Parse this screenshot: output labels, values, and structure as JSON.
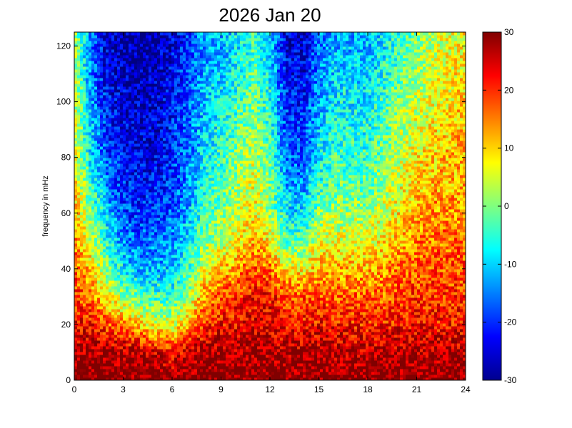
{
  "chart_data": {
    "type": "heatmap",
    "title": "2026 Jan 20",
    "xlabel": "",
    "ylabel": "frequency in mHz",
    "xlim": [
      0,
      24
    ],
    "ylim": [
      0,
      125
    ],
    "x_ticks": [
      0,
      3,
      6,
      9,
      12,
      15,
      18,
      21,
      24
    ],
    "y_ticks": [
      0,
      20,
      40,
      60,
      80,
      100,
      120
    ],
    "colorbar": {
      "colormap": "jet",
      "min": -30,
      "max": 30,
      "ticks": [
        30,
        20,
        10,
        0,
        -10,
        -20,
        -30
      ]
    },
    "times": [
      0,
      1,
      2,
      3,
      4,
      5,
      6,
      7,
      8,
      9,
      10,
      11,
      12,
      13,
      14,
      15,
      16,
      17,
      18,
      19,
      20,
      21,
      22,
      23,
      24
    ],
    "frequencies": [
      0,
      10,
      20,
      30,
      40,
      50,
      60,
      70,
      80,
      90,
      100,
      110,
      120
    ],
    "values": [
      [
        30,
        30,
        30,
        30,
        30,
        30,
        30,
        30,
        30,
        30,
        30,
        30,
        30,
        30,
        30,
        30,
        30,
        30,
        30,
        30,
        30,
        30,
        30,
        30,
        30
      ],
      [
        28,
        28,
        28,
        28,
        27,
        25,
        22,
        26,
        28,
        28,
        28,
        28,
        28,
        27,
        27,
        28,
        27,
        27,
        27,
        27,
        27,
        27,
        27,
        27,
        27
      ],
      [
        22,
        22,
        18,
        14,
        10,
        6,
        5,
        12,
        20,
        22,
        23,
        24,
        24,
        22,
        22,
        22,
        22,
        21,
        21,
        21,
        22,
        22,
        22,
        22,
        22
      ],
      [
        20,
        15,
        8,
        2,
        -2,
        -4,
        -4,
        2,
        14,
        18,
        20,
        22,
        22,
        18,
        18,
        18,
        17,
        17,
        17,
        17,
        19,
        20,
        20,
        20,
        20
      ],
      [
        18,
        10,
        0,
        -8,
        -12,
        -12,
        -10,
        -4,
        6,
        10,
        14,
        18,
        16,
        8,
        8,
        12,
        12,
        12,
        12,
        13,
        16,
        17,
        18,
        18,
        18
      ],
      [
        15,
        5,
        -6,
        -14,
        -16,
        -16,
        -14,
        -8,
        0,
        4,
        8,
        12,
        8,
        -2,
        -2,
        6,
        6,
        6,
        6,
        9,
        12,
        15,
        16,
        16,
        16
      ],
      [
        12,
        0,
        -10,
        -18,
        -20,
        -20,
        -17,
        -12,
        -4,
        0,
        4,
        8,
        2,
        -8,
        -10,
        0,
        2,
        2,
        2,
        5,
        9,
        12,
        14,
        14,
        14
      ],
      [
        10,
        -4,
        -14,
        -20,
        -22,
        -22,
        -19,
        -14,
        -6,
        -2,
        2,
        6,
        0,
        -12,
        -14,
        -4,
        -2,
        -2,
        -2,
        2,
        6,
        10,
        12,
        12,
        12
      ],
      [
        8,
        -8,
        -18,
        -22,
        -24,
        -23,
        -20,
        -15,
        -8,
        -4,
        0,
        4,
        -2,
        -16,
        -18,
        -8,
        -4,
        -4,
        -4,
        0,
        4,
        8,
        10,
        12,
        12
      ],
      [
        6,
        -10,
        -20,
        -24,
        -25,
        -24,
        -21,
        -16,
        -10,
        -6,
        -2,
        2,
        -4,
        -18,
        -20,
        -10,
        -6,
        -6,
        -6,
        -2,
        2,
        6,
        8,
        10,
        12
      ],
      [
        4,
        -12,
        -22,
        -25,
        -26,
        -25,
        -22,
        -17,
        -10,
        -8,
        -4,
        0,
        -6,
        -20,
        -22,
        -12,
        -8,
        -8,
        -8,
        -4,
        0,
        4,
        6,
        8,
        10
      ],
      [
        4,
        -14,
        -24,
        -26,
        -27,
        -26,
        -23,
        -18,
        -12,
        -10,
        -6,
        -2,
        -8,
        -22,
        -24,
        -14,
        -10,
        -10,
        -10,
        -6,
        -2,
        2,
        5,
        7,
        10
      ],
      [
        2,
        -15,
        -25,
        -27,
        -28,
        -27,
        -24,
        -19,
        -13,
        -12,
        -8,
        -4,
        -10,
        -24,
        -25,
        -16,
        -12,
        -12,
        -12,
        -8,
        -4,
        0,
        4,
        6,
        8
      ]
    ]
  }
}
